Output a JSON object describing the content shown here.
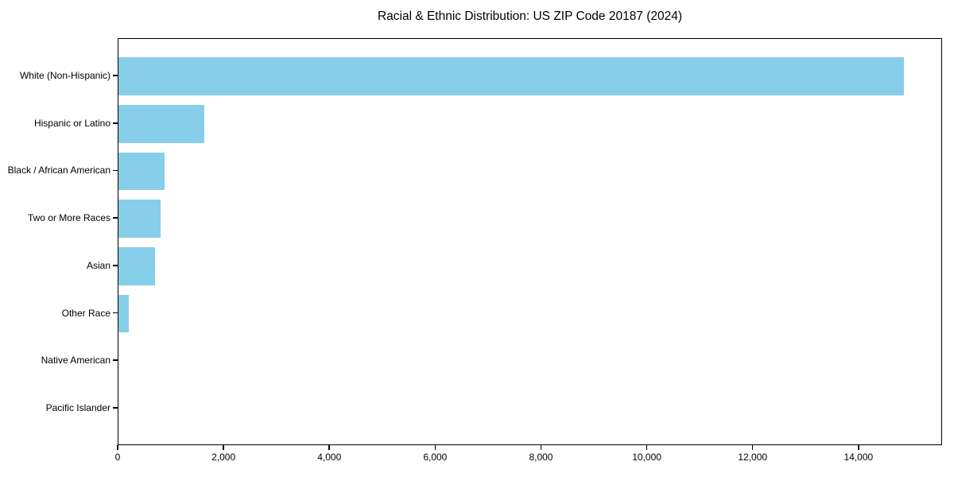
{
  "chart_data": {
    "type": "bar",
    "orientation": "horizontal",
    "title": "Racial & Ethnic Distribution: US ZIP Code 20187 (2024)",
    "categories": [
      "White (Non-Hispanic)",
      "Hispanic or Latino",
      "Black / African American",
      "Two or More Races",
      "Asian",
      "Other Race",
      "Native American",
      "Pacific Islander"
    ],
    "values": [
      14840,
      1620,
      870,
      800,
      690,
      190,
      0,
      0
    ],
    "xlabel": "",
    "ylabel": "",
    "x_ticks": [
      0,
      2000,
      4000,
      6000,
      8000,
      10000,
      12000,
      14000
    ],
    "x_tick_labels": [
      "0",
      "2,000",
      "4,000",
      "6,000",
      "8,000",
      "10,000",
      "12,000",
      "14,000"
    ],
    "xlim": [
      0,
      15580
    ],
    "bar_color": "#87CEEB",
    "background_color": "#ffffff",
    "axis_color": "#000000",
    "grid": false,
    "legend": null
  }
}
